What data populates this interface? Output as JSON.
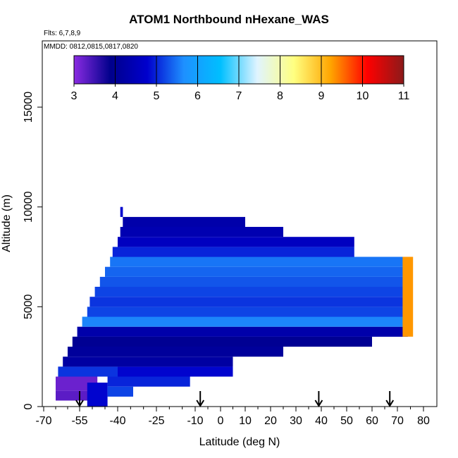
{
  "chart_data": {
    "type": "heatmap",
    "title": "ATOM1 Northbound nHexane_WAS",
    "annotations": [
      "Flts: 6,7,8,9",
      "MMDD: 0812,0815,0817,0820"
    ],
    "xlabel": "Latitude (deg N)",
    "ylabel": "Altitude (m)",
    "x_ticks": [
      -70,
      -55,
      -40,
      -25,
      -10,
      0,
      10,
      20,
      30,
      40,
      50,
      60,
      70,
      80
    ],
    "x_tick_labels": [
      "-70",
      "-55",
      "-40",
      "-25",
      "-10",
      "0",
      "10",
      "20",
      "30",
      "40",
      "50",
      "60",
      "70",
      "80"
    ],
    "y_ticks": [
      0,
      5000,
      10000,
      15000
    ],
    "y_tick_labels": [
      "0",
      "5000",
      "10000",
      "15000"
    ],
    "ylim": [
      0,
      17500
    ],
    "colorbar": {
      "min": 3,
      "max": 11,
      "ticks": [
        3,
        4,
        5,
        6,
        7,
        8,
        9,
        10,
        11
      ],
      "tick_labels": [
        "3",
        "4",
        "5",
        "6",
        "7",
        "8",
        "9",
        "10",
        "11"
      ],
      "colors": [
        "#8a2be2",
        "#00008b",
        "#0000cd",
        "#1e90ff",
        "#00bfff",
        "#e0f4ff",
        "#ffff80",
        "#ffa500",
        "#ff0000",
        "#8b1a1a"
      ]
    },
    "flight_markers_lat": [
      -55,
      -8,
      39,
      67
    ],
    "cells": [
      {
        "lat": [
          -65,
          -48
        ],
        "alt": [
          800,
          1500
        ],
        "value": 3.2
      },
      {
        "lat": [
          -65,
          -48
        ],
        "alt": [
          300,
          800
        ],
        "value": 3.3
      },
      {
        "lat": [
          -52,
          -44
        ],
        "alt": [
          0,
          1200
        ],
        "value": 4.8
      },
      {
        "lat": [
          -44,
          -12
        ],
        "alt": [
          1000,
          1500
        ],
        "value": 5.0
      },
      {
        "lat": [
          -44,
          -34
        ],
        "alt": [
          500,
          1000
        ],
        "value": 5.2
      },
      {
        "lat": [
          -64,
          -40
        ],
        "alt": [
          1500,
          2000
        ],
        "value": 5.1
      },
      {
        "lat": [
          -40,
          5
        ],
        "alt": [
          1500,
          2000
        ],
        "value": 4.8
      },
      {
        "lat": [
          -62,
          5
        ],
        "alt": [
          2000,
          2500
        ],
        "value": 4.2
      },
      {
        "lat": [
          -60,
          25
        ],
        "alt": [
          2500,
          3000
        ],
        "value": 4.1
      },
      {
        "lat": [
          -58,
          60
        ],
        "alt": [
          3000,
          3500
        ],
        "value": 4.0
      },
      {
        "lat": [
          -56,
          74
        ],
        "alt": [
          3500,
          4000
        ],
        "value": 4.3
      },
      {
        "lat": [
          -54,
          73
        ],
        "alt": [
          4000,
          4500
        ],
        "value": 5.6
      },
      {
        "lat": [
          -52,
          73
        ],
        "alt": [
          4500,
          5000
        ],
        "value": 5.2
      },
      {
        "lat": [
          -51,
          73
        ],
        "alt": [
          5000,
          5500
        ],
        "value": 5.1
      },
      {
        "lat": [
          -49,
          73
        ],
        "alt": [
          5500,
          6000
        ],
        "value": 5.2
      },
      {
        "lat": [
          -47,
          73
        ],
        "alt": [
          6000,
          6500
        ],
        "value": 5.3
      },
      {
        "lat": [
          -45,
          73
        ],
        "alt": [
          6500,
          7000
        ],
        "value": 5.4
      },
      {
        "lat": [
          -43,
          73
        ],
        "alt": [
          7000,
          7500
        ],
        "value": 5.5
      },
      {
        "lat": [
          -42,
          53
        ],
        "alt": [
          7500,
          8000
        ],
        "value": 5.0
      },
      {
        "lat": [
          -40,
          53
        ],
        "alt": [
          8000,
          8500
        ],
        "value": 4.6
      },
      {
        "lat": [
          -39,
          25
        ],
        "alt": [
          8500,
          9000
        ],
        "value": 4.4
      },
      {
        "lat": [
          -38,
          10
        ],
        "alt": [
          9000,
          9500
        ],
        "value": 4.3
      },
      {
        "lat": [
          -39,
          -38
        ],
        "alt": [
          9500,
          10000
        ],
        "value": 4.8
      },
      {
        "lat": [
          72,
          76
        ],
        "alt": [
          3500,
          7500
        ],
        "value": 9.3
      }
    ]
  }
}
